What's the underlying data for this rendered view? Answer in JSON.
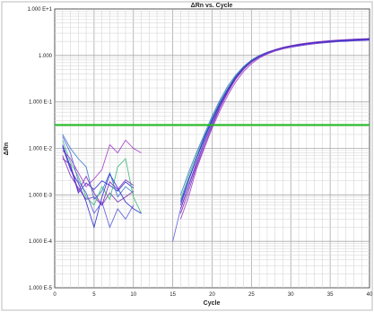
{
  "chart_data": {
    "type": "line",
    "title": "ΔRn vs. Cycle",
    "xlabel": "Cycle",
    "ylabel": "ΔRn",
    "x_scale": "linear",
    "y_scale": "log",
    "xlim": [
      0,
      40
    ],
    "ylim": [
      1e-05,
      10
    ],
    "x_ticks": [
      0,
      5,
      10,
      15,
      20,
      25,
      30,
      35,
      40
    ],
    "x_tick_labels": [
      "0",
      "5",
      "10",
      "15",
      "20",
      "25",
      "30",
      "35",
      "40"
    ],
    "y_ticks": [
      1e-05,
      0.0001,
      0.001,
      0.01,
      0.1,
      1,
      10
    ],
    "y_tick_labels": [
      "1.000 E-5",
      "1.000 E-4",
      "1.000 E-3",
      "1.000 E-2",
      "1.000 E-1",
      "1.000",
      "1.000 E+1"
    ],
    "grid": true,
    "threshold": {
      "value": 0.032,
      "color": "#22bb22"
    },
    "series_colors": [
      "#2a2ad0",
      "#7a2ab8",
      "#3a7ad0",
      "#3cb878",
      "#a43cc8",
      "#5a5ae0"
    ],
    "series": [
      {
        "x": [
          1,
          2,
          3,
          4,
          5,
          6,
          7,
          8,
          9,
          10,
          11,
          12,
          13,
          14,
          15,
          16,
          17,
          18,
          19,
          20,
          21,
          22,
          23,
          24,
          25,
          26,
          27,
          28,
          29,
          30,
          31,
          32,
          33,
          34,
          35,
          36,
          37,
          38,
          39,
          40
        ],
        "y": [
          0.012,
          0.004,
          0.0011,
          0.0018,
          0.0013,
          0.002,
          0.0016,
          0.0012,
          0.0019,
          0.0014,
          null,
          null,
          null,
          null,
          null,
          0.0006,
          0.002,
          0.006,
          0.016,
          0.04,
          0.09,
          0.18,
          0.33,
          0.52,
          0.72,
          0.92,
          1.1,
          1.25,
          1.4,
          1.5,
          1.6,
          1.7,
          1.78,
          1.85,
          1.92,
          1.98,
          2.02,
          2.06,
          2.1,
          2.13
        ]
      },
      {
        "x": [
          1,
          2,
          3,
          4,
          5,
          6,
          7,
          8,
          9,
          10,
          11,
          12,
          13,
          14,
          15,
          16,
          17,
          18,
          19,
          20,
          21,
          22,
          23,
          24,
          25,
          26,
          27,
          28,
          29,
          30,
          31,
          32,
          33,
          34,
          35,
          36,
          37,
          38,
          39,
          40
        ],
        "y": [
          0.007,
          0.0026,
          0.0014,
          0.0008,
          0.0009,
          0.0006,
          0.0011,
          0.0007,
          0.0009,
          0.0012,
          null,
          null,
          null,
          null,
          null,
          0.0004,
          0.0012,
          0.004,
          0.011,
          0.03,
          0.075,
          0.16,
          0.31,
          0.5,
          0.72,
          0.95,
          1.15,
          1.32,
          1.48,
          1.6,
          1.72,
          1.82,
          1.9,
          1.98,
          2.04,
          2.1,
          2.15,
          2.2,
          2.24,
          2.28
        ]
      },
      {
        "x": [
          1,
          2,
          3,
          4,
          5,
          6,
          7,
          8,
          9,
          10,
          11,
          12,
          13,
          14,
          15,
          16,
          17,
          18,
          19,
          20,
          21,
          22,
          23,
          24,
          25,
          26,
          27,
          28,
          29,
          30,
          31,
          32,
          33,
          34,
          35,
          36,
          37,
          38,
          39,
          40
        ],
        "y": [
          0.02,
          0.01,
          0.006,
          0.004,
          0.0008,
          0.0012,
          0.003,
          0.0009,
          0.0015,
          0.0011,
          null,
          null,
          null,
          null,
          null,
          0.001,
          0.003,
          0.008,
          0.02,
          0.05,
          0.11,
          0.22,
          0.38,
          0.58,
          0.8,
          1.0,
          1.18,
          1.34,
          1.48,
          1.6,
          1.7,
          1.79,
          1.87,
          1.94,
          2.0,
          2.06,
          2.11,
          2.15,
          2.19,
          2.22
        ]
      },
      {
        "x": [
          1,
          2,
          3,
          4,
          5,
          6,
          7,
          8,
          9,
          10,
          11,
          12,
          13,
          14,
          15,
          16,
          17,
          18,
          19,
          20,
          21,
          22,
          23,
          24,
          25,
          26,
          27,
          28,
          29,
          30,
          31,
          32,
          33,
          34,
          35,
          36,
          37,
          38,
          39,
          40
        ],
        "y": [
          0.015,
          0.005,
          0.0025,
          0.0009,
          0.0006,
          0.0015,
          0.0008,
          0.004,
          0.006,
          0.0009,
          0.0004,
          null,
          null,
          null,
          null,
          0.0008,
          0.0025,
          0.007,
          0.018,
          0.045,
          0.1,
          0.2,
          0.36,
          0.56,
          0.78,
          0.98,
          1.16,
          1.3,
          1.44,
          1.56,
          1.66,
          1.75,
          1.83,
          1.9,
          1.96,
          2.02,
          2.07,
          2.11,
          2.15,
          2.18
        ]
      },
      {
        "x": [
          1,
          2,
          3,
          4,
          5,
          6,
          7,
          8,
          9,
          10,
          11,
          12,
          13,
          14,
          15,
          16,
          17,
          18,
          19,
          20,
          21,
          22,
          23,
          24,
          25,
          26,
          27,
          28,
          29,
          30,
          31,
          32,
          33,
          34,
          35,
          36,
          37,
          38,
          39,
          40
        ],
        "y": [
          0.009,
          0.006,
          0.003,
          0.0015,
          0.0022,
          0.0035,
          0.012,
          0.008,
          0.015,
          0.01,
          0.008,
          null,
          null,
          null,
          null,
          0.0003,
          0.0009,
          0.0035,
          0.01,
          0.027,
          0.065,
          0.14,
          0.27,
          0.45,
          0.66,
          0.88,
          1.07,
          1.24,
          1.38,
          1.5,
          1.62,
          1.72,
          1.8,
          1.88,
          1.95,
          2.01,
          2.06,
          2.1,
          2.14,
          2.17
        ]
      },
      {
        "x": [
          1,
          2,
          3,
          4,
          5,
          6,
          7,
          8,
          9,
          10,
          11,
          12,
          13,
          14,
          15,
          16,
          17,
          18,
          19,
          20,
          21,
          22,
          23,
          24,
          25,
          26,
          27,
          28,
          29,
          30,
          31,
          32,
          33,
          34,
          35,
          36,
          37,
          38,
          39,
          40
        ],
        "y": [
          0.018,
          0.008,
          0.002,
          0.0011,
          0.0004,
          0.0007,
          0.0002,
          0.0005,
          0.0003,
          0.0006,
          null,
          null,
          null,
          null,
          0.0001,
          0.0005,
          0.0016,
          0.005,
          0.014,
          0.036,
          0.085,
          0.17,
          0.32,
          0.51,
          0.73,
          0.94,
          1.13,
          1.29,
          1.44,
          1.57,
          1.68,
          1.77,
          1.86,
          1.93,
          1.99,
          2.05,
          2.1,
          2.14,
          2.18,
          2.22
        ]
      },
      {
        "x": [
          1,
          2,
          3,
          4,
          5,
          6,
          7,
          8,
          9,
          10,
          11,
          12,
          13,
          14,
          15,
          16,
          17,
          18,
          19,
          20,
          21,
          22,
          23,
          24,
          25,
          26,
          27,
          28,
          29,
          30,
          31,
          32,
          33,
          34,
          35,
          36,
          37,
          38,
          39,
          40
        ],
        "y": [
          0.011,
          0.0035,
          0.0018,
          0.0007,
          0.0002,
          0.0009,
          0.0028,
          0.0014,
          0.0007,
          0.0005,
          0.0004,
          null,
          null,
          null,
          null,
          0.0007,
          0.0021,
          0.006,
          0.017,
          0.042,
          0.095,
          0.19,
          0.35,
          0.55,
          0.77,
          0.97,
          1.15,
          1.31,
          1.46,
          1.58,
          1.69,
          1.78,
          1.86,
          1.93,
          1.99,
          2.05,
          2.1,
          2.14,
          2.18,
          2.21
        ]
      },
      {
        "x": [
          1,
          2,
          3,
          4,
          5,
          6,
          7,
          8,
          9,
          10,
          11,
          12,
          13,
          14,
          15,
          16,
          17,
          18,
          19,
          20,
          21,
          22,
          23,
          24,
          25,
          26,
          27,
          28,
          29,
          30,
          31,
          32,
          33,
          34,
          35,
          36,
          37,
          38,
          39,
          40
        ],
        "y": [
          0.006,
          0.0045,
          0.0012,
          0.0025,
          0.0011,
          0.0006,
          0.0019,
          0.0013,
          0.0021,
          0.0016,
          null,
          null,
          null,
          null,
          null,
          0.0005,
          0.0015,
          0.0045,
          0.013,
          0.033,
          0.08,
          0.17,
          0.32,
          0.52,
          0.74,
          0.96,
          1.16,
          1.33,
          1.49,
          1.62,
          1.74,
          1.84,
          1.93,
          2.01,
          2.08,
          2.14,
          2.19,
          2.24,
          2.28,
          2.32
        ]
      }
    ]
  }
}
